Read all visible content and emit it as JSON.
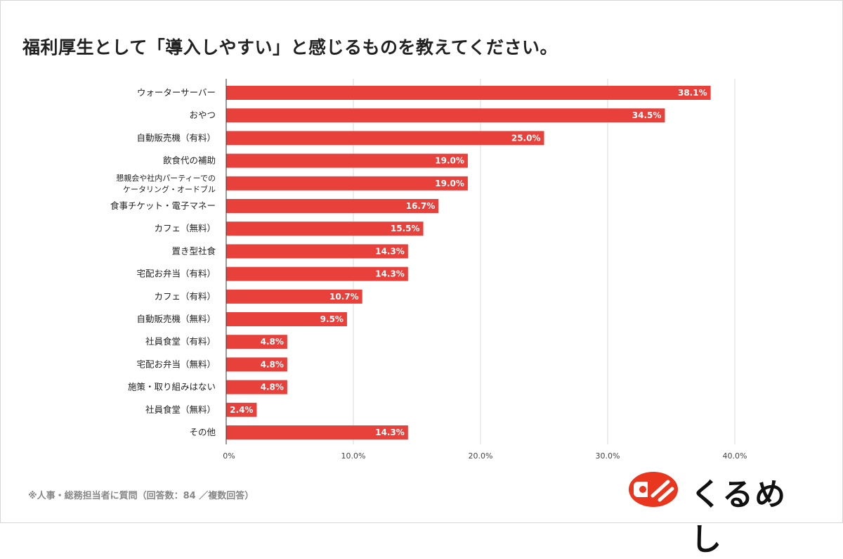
{
  "title": "福利厚生として「導入しやすい」と感じるものを教えてください。",
  "note": "※人事・総務担当者に質問（回答数：84 ／複数回答）",
  "logo": {
    "text": "くるめし",
    "color": "#e8371e"
  },
  "chart_data": {
    "type": "bar",
    "orientation": "horizontal",
    "title": "福利厚生として「導入しやすい」と感じるものを教えてください。",
    "categories": [
      "ウォーターサーバー",
      "おやつ",
      "自動販売機（有料）",
      "飲食代の補助",
      "懇親会や社内パーティーでの\nケータリング・オードブル",
      "食事チケット・電子マネー",
      "カフェ（無料）",
      "置き型社食",
      "宅配お弁当（有料）",
      "カフェ（有料）",
      "自動販売機（無料）",
      "社員食堂（有料）",
      "宅配お弁当（無料）",
      "施策・取り組みはない",
      "社員食堂（無料）",
      "その他"
    ],
    "values": [
      38.1,
      34.5,
      25.0,
      19.0,
      19.0,
      16.7,
      15.5,
      14.3,
      14.3,
      10.7,
      9.5,
      4.8,
      4.8,
      4.8,
      2.4,
      14.3
    ],
    "data_labels": [
      "38.1%",
      "34.5%",
      "25.0%",
      "19.0%",
      "19.0%",
      "16.7%",
      "15.5%",
      "14.3%",
      "14.3%",
      "10.7%",
      "9.5%",
      "4.8%",
      "4.8%",
      "4.8%",
      "2.4%",
      "14.3%"
    ],
    "xlim": [
      0,
      40
    ],
    "xticks": [
      "0%",
      "10.0%",
      "20.0%",
      "30.0%",
      "40.0%"
    ],
    "grid": true,
    "bar_color": "#e8403a"
  }
}
